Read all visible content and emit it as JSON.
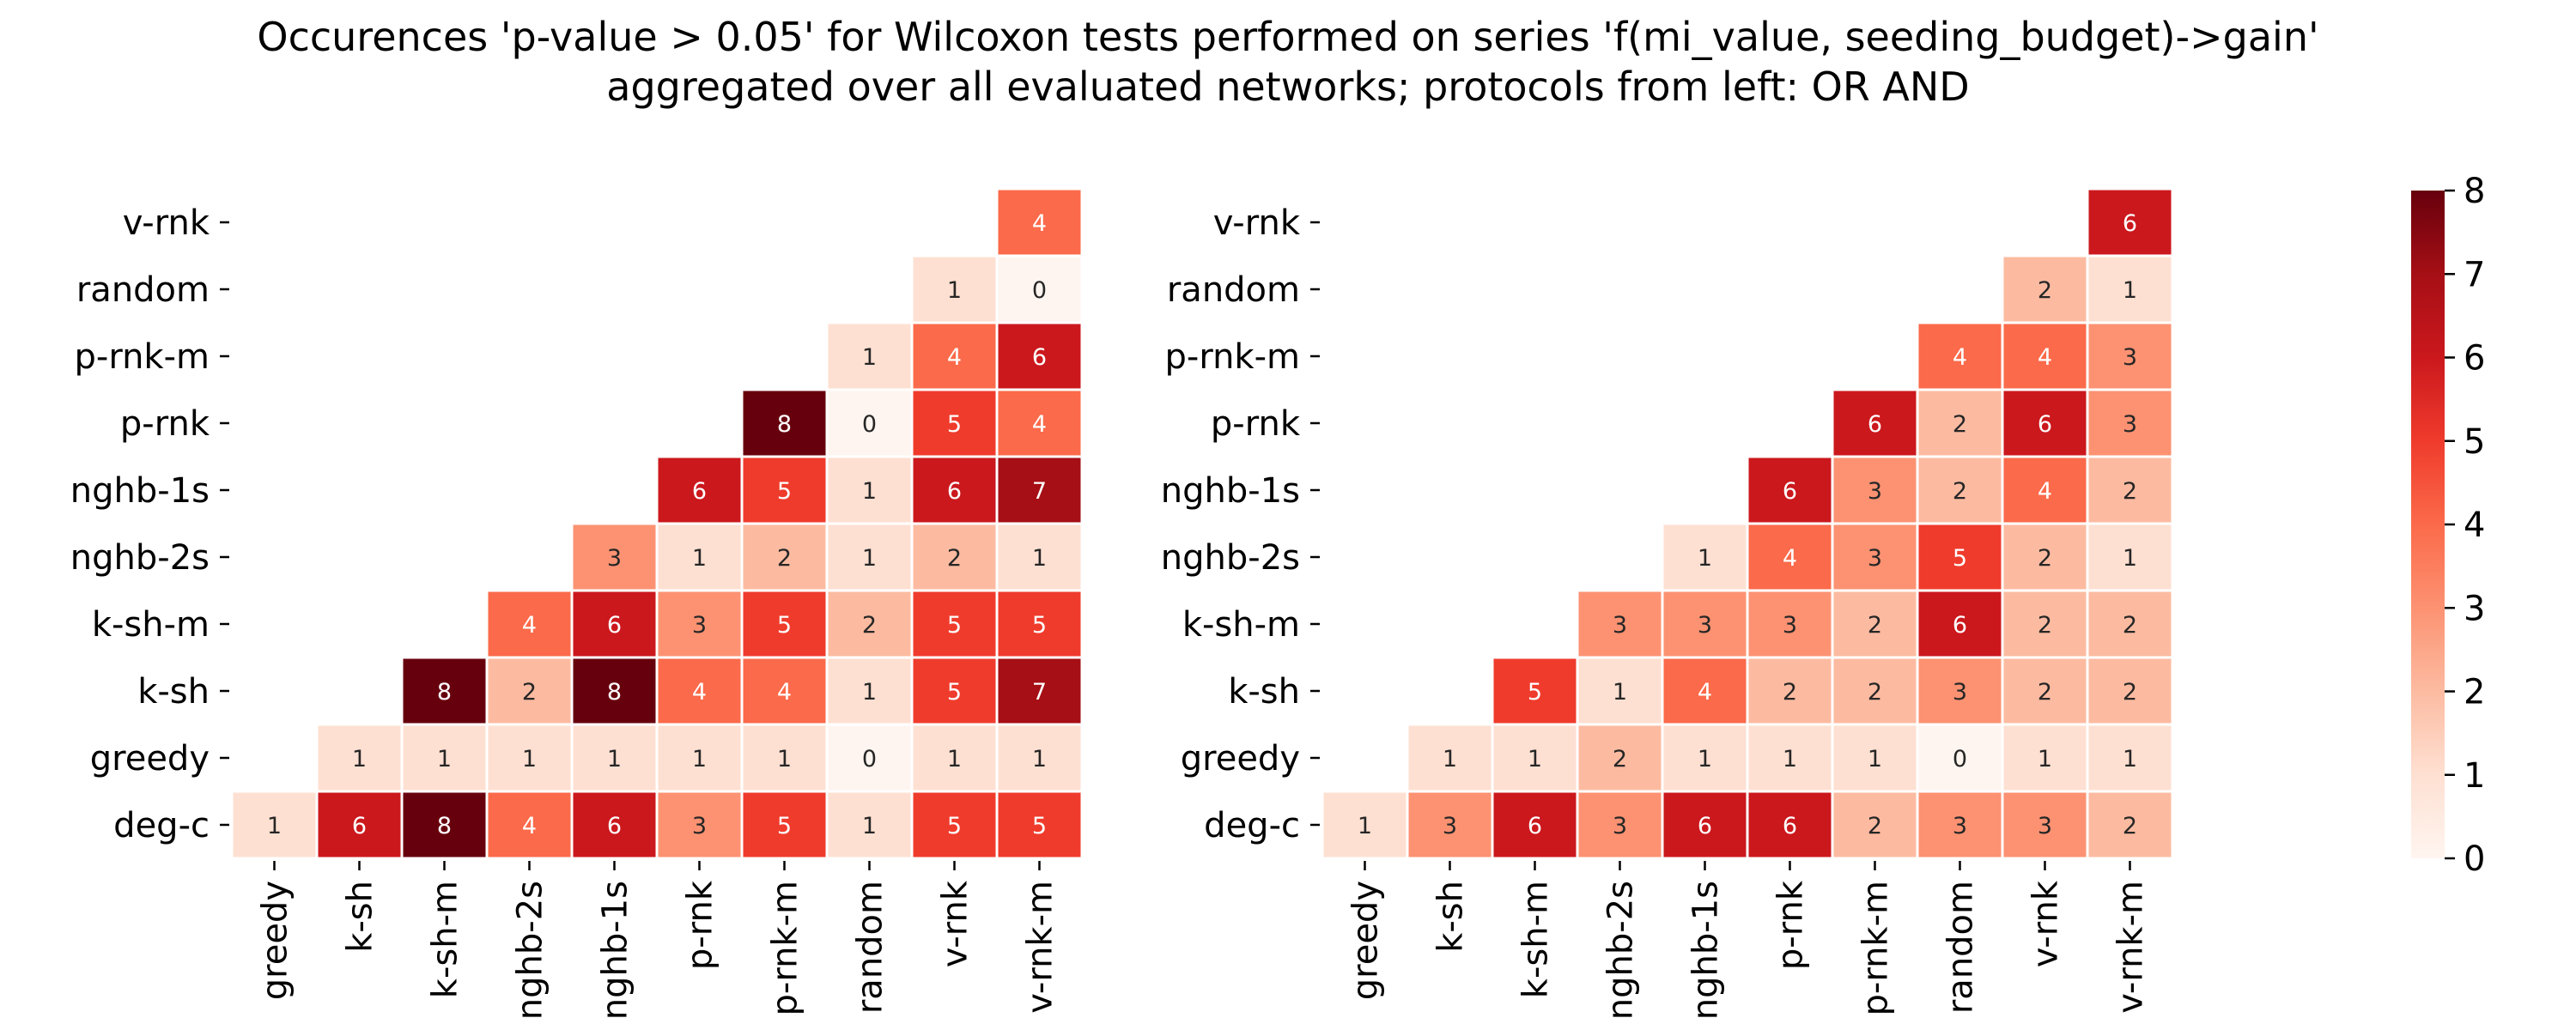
{
  "title": {
    "line1": "Occurences 'p-value > 0.05' for Wilcoxon tests performed on series 'f(mi_value, seeding_budget)->gain'",
    "line2": "aggregated over all evaluated networks; protocols from left: OR AND"
  },
  "chart_data": {
    "type": "heatmap",
    "x_categories": [
      "greedy",
      "k-sh",
      "k-sh-m",
      "nghb-2s",
      "nghb-1s",
      "p-rnk",
      "p-rnk-m",
      "random",
      "v-rnk",
      "v-rnk-m"
    ],
    "y_categories": [
      "v-rnk",
      "random",
      "p-rnk-m",
      "p-rnk",
      "nghb-1s",
      "nghb-2s",
      "k-sh-m",
      "k-sh",
      "greedy",
      "deg-c"
    ],
    "colormap": "Reds",
    "grid": false,
    "colorbar": {
      "min": 0,
      "max": 8,
      "ticks": [
        0,
        1,
        2,
        3,
        4,
        5,
        6,
        7,
        8
      ],
      "placement": "right"
    },
    "panels": [
      {
        "protocol": "OR",
        "values": [
          [
            null,
            null,
            null,
            null,
            null,
            null,
            null,
            null,
            null,
            4
          ],
          [
            null,
            null,
            null,
            null,
            null,
            null,
            null,
            null,
            1,
            0
          ],
          [
            null,
            null,
            null,
            null,
            null,
            null,
            null,
            1,
            4,
            6
          ],
          [
            null,
            null,
            null,
            null,
            null,
            null,
            8,
            0,
            5,
            4
          ],
          [
            null,
            null,
            null,
            null,
            null,
            6,
            5,
            1,
            6,
            7
          ],
          [
            null,
            null,
            null,
            null,
            3,
            1,
            2,
            1,
            2,
            1
          ],
          [
            null,
            null,
            null,
            4,
            6,
            3,
            5,
            2,
            5,
            5
          ],
          [
            null,
            null,
            8,
            2,
            8,
            4,
            4,
            1,
            5,
            7
          ],
          [
            null,
            1,
            1,
            1,
            1,
            1,
            1,
            0,
            1,
            1
          ],
          [
            1,
            6,
            8,
            4,
            6,
            3,
            5,
            1,
            5,
            5
          ]
        ]
      },
      {
        "protocol": "AND",
        "values": [
          [
            null,
            null,
            null,
            null,
            null,
            null,
            null,
            null,
            null,
            6
          ],
          [
            null,
            null,
            null,
            null,
            null,
            null,
            null,
            null,
            2,
            1
          ],
          [
            null,
            null,
            null,
            null,
            null,
            null,
            null,
            4,
            4,
            3
          ],
          [
            null,
            null,
            null,
            null,
            null,
            null,
            6,
            2,
            6,
            3
          ],
          [
            null,
            null,
            null,
            null,
            null,
            6,
            3,
            2,
            4,
            2
          ],
          [
            null,
            null,
            null,
            null,
            1,
            4,
            3,
            5,
            2,
            1
          ],
          [
            null,
            null,
            null,
            3,
            3,
            3,
            2,
            6,
            2,
            2
          ],
          [
            null,
            null,
            5,
            1,
            4,
            2,
            2,
            3,
            2,
            2
          ],
          [
            null,
            1,
            1,
            2,
            1,
            1,
            1,
            0,
            1,
            1
          ],
          [
            1,
            3,
            6,
            3,
            6,
            6,
            2,
            3,
            3,
            2
          ]
        ]
      }
    ]
  }
}
